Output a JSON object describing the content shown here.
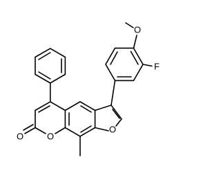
{
  "atoms": [
    {
      "label": "O"
    },
    {
      "label": "F"
    },
    {
      "label": "O"
    },
    {
      "label": "O"
    },
    {
      "label": "O"
    }
  ]
}
